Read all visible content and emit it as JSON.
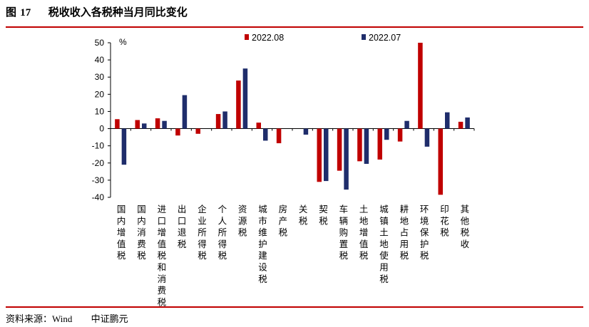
{
  "header": {
    "figure_label": "图",
    "figure_number": "17",
    "title": "税收收入各税种当月同比变化"
  },
  "footer": {
    "source_label": "资料来源：",
    "source_text": "Wind",
    "publisher": "中证鹏元"
  },
  "colors": {
    "accent_rule": "#c00000",
    "series_red": "#c00000",
    "series_navy": "#1f2d6b"
  },
  "chart_data": {
    "type": "bar",
    "title": "税收收入各税种当月同比变化",
    "ylabel": "%",
    "xlabel": "",
    "ylim": [
      -40,
      50
    ],
    "yticks": [
      50,
      40,
      30,
      20,
      10,
      0,
      -10,
      -20,
      -30,
      -40
    ],
    "legend_position": "top-center",
    "categories": [
      "国内增值税",
      "国内消费税",
      "进口增值税和消费税",
      "出口退税",
      "企业所得税",
      "个人所得税",
      "资源税",
      "城市维护建设税",
      "房产税",
      "关税",
      "契税",
      "车辆购置税",
      "土地增值税",
      "城镇土地使用税",
      "耕地占用税",
      "环境保护税",
      "印花税",
      "其他税收"
    ],
    "series": [
      {
        "name": "2022.08",
        "color": "#c00000",
        "values": [
          5.5,
          5,
          6,
          -4,
          -3,
          8.5,
          28,
          3.5,
          -8.5,
          0,
          -31,
          -24.5,
          -19,
          -18,
          -7.5,
          50,
          -38.5,
          4
        ]
      },
      {
        "name": "2022.07",
        "color": "#1f2d6b",
        "values": [
          -21,
          3,
          4.5,
          19.5,
          0,
          10,
          35,
          -7,
          0,
          -3.5,
          -30.5,
          -35.5,
          -20.5,
          -6.5,
          4.5,
          -10.5,
          9.5,
          6.5
        ]
      }
    ]
  }
}
